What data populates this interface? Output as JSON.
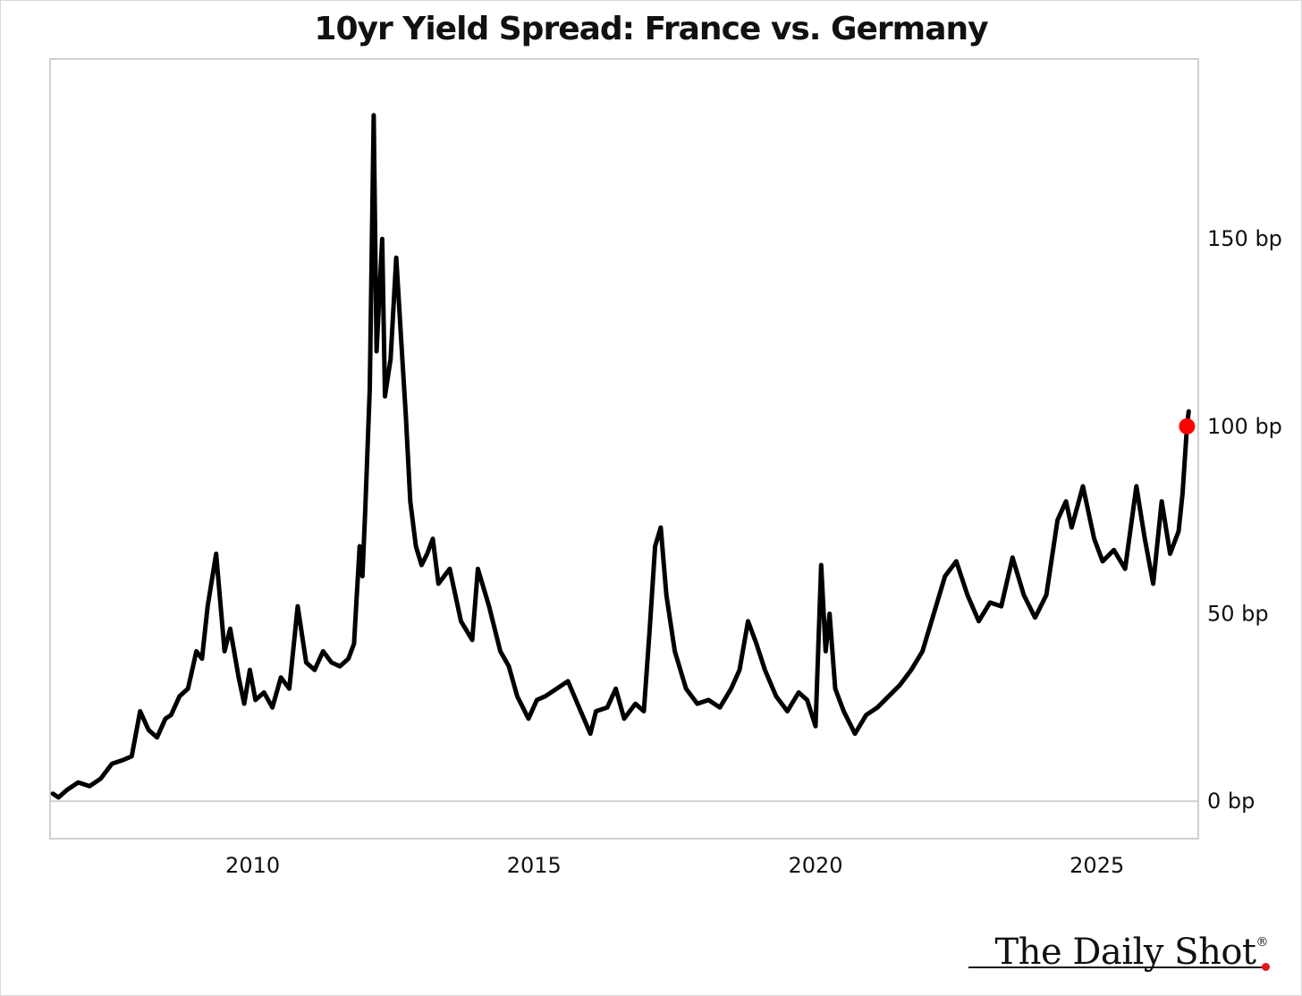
{
  "chart_data": {
    "type": "line",
    "title": "10yr Yield Spread: France vs. Germany",
    "xlabel": "",
    "ylabel": "",
    "x_ticks": [
      2010,
      2015,
      2020,
      2025
    ],
    "x_tick_labels": [
      "2010",
      "2015",
      "2020",
      "2025"
    ],
    "y_ticks": [
      0,
      50,
      100,
      150
    ],
    "y_tick_labels": [
      "0 bp",
      "50 bp",
      "100 bp",
      "150 bp"
    ],
    "xlim": [
      2006.4,
      2026.8
    ],
    "ylim": [
      -10,
      198
    ],
    "grid": false,
    "legend": "none",
    "line_color": "#000000",
    "last_point_color": "#ff0000",
    "series": [
      {
        "x": [
          2006.45,
          2006.55,
          2006.7,
          2006.9,
          2007.1,
          2007.3,
          2007.5,
          2007.7,
          2007.85,
          2008.0,
          2008.15,
          2008.3,
          2008.45,
          2008.55,
          2008.7,
          2008.85,
          2009.0,
          2009.1,
          2009.2,
          2009.35,
          2009.5,
          2009.6,
          2009.75,
          2009.85,
          2009.95,
          2010.05,
          2010.2,
          2010.35,
          2010.5,
          2010.65,
          2010.8,
          2010.95,
          2011.1,
          2011.25,
          2011.4,
          2011.55,
          2011.7,
          2011.8,
          2011.85,
          2011.9,
          2011.95,
          2012.0,
          2012.08,
          2012.15,
          2012.2,
          2012.3,
          2012.35,
          2012.45,
          2012.55,
          2012.65,
          2012.72,
          2012.8,
          2012.9,
          2013.0,
          2013.1,
          2013.2,
          2013.3,
          2013.5,
          2013.7,
          2013.9,
          2014.0,
          2014.2,
          2014.4,
          2014.55,
          2014.7,
          2014.9,
          2015.05,
          2015.2,
          2015.4,
          2015.6,
          2015.8,
          2016.0,
          2016.1,
          2016.3,
          2016.45,
          2016.6,
          2016.8,
          2016.95,
          2017.05,
          2017.15,
          2017.25,
          2017.35,
          2017.5,
          2017.7,
          2017.9,
          2018.1,
          2018.3,
          2018.5,
          2018.65,
          2018.8,
          2018.95,
          2019.1,
          2019.3,
          2019.5,
          2019.7,
          2019.85,
          2020.0,
          2020.1,
          2020.18,
          2020.25,
          2020.35,
          2020.5,
          2020.7,
          2020.9,
          2021.1,
          2021.3,
          2021.5,
          2021.7,
          2021.9,
          2022.1,
          2022.3,
          2022.5,
          2022.7,
          2022.9,
          2023.1,
          2023.3,
          2023.5,
          2023.7,
          2023.9,
          2024.1,
          2024.3,
          2024.45,
          2024.55,
          2024.75,
          2024.95,
          2025.1,
          2025.3,
          2025.5,
          2025.7,
          2025.85,
          2026.0,
          2026.15,
          2026.3,
          2026.45,
          2026.52,
          2026.6,
          2026.63
        ],
        "y": [
          2,
          1,
          3,
          5,
          4,
          6,
          10,
          11,
          12,
          24,
          19,
          17,
          22,
          23,
          28,
          30,
          40,
          38,
          52,
          66,
          40,
          46,
          33,
          26,
          35,
          27,
          29,
          25,
          33,
          30,
          52,
          37,
          35,
          40,
          37,
          36,
          38,
          42,
          55,
          68,
          60,
          78,
          110,
          183,
          120,
          150,
          108,
          118,
          145,
          120,
          103,
          80,
          68,
          63,
          66,
          70,
          58,
          62,
          48,
          43,
          62,
          52,
          40,
          36,
          28,
          22,
          27,
          28,
          30,
          32,
          25,
          18,
          24,
          25,
          30,
          22,
          26,
          24,
          45,
          68,
          73,
          55,
          40,
          30,
          26,
          27,
          25,
          30,
          35,
          48,
          42,
          35,
          28,
          24,
          29,
          27,
          20,
          63,
          40,
          50,
          30,
          24,
          18,
          23,
          25,
          28,
          31,
          35,
          40,
          50,
          60,
          64,
          55,
          48,
          53,
          52,
          65,
          55,
          49,
          55,
          75,
          80,
          73,
          84,
          70,
          64,
          67,
          62,
          84,
          70,
          58,
          80,
          66,
          72,
          82,
          100,
          104
        ]
      }
    ]
  },
  "branding": {
    "name": "The Daily Shot",
    "registered": "®"
  }
}
